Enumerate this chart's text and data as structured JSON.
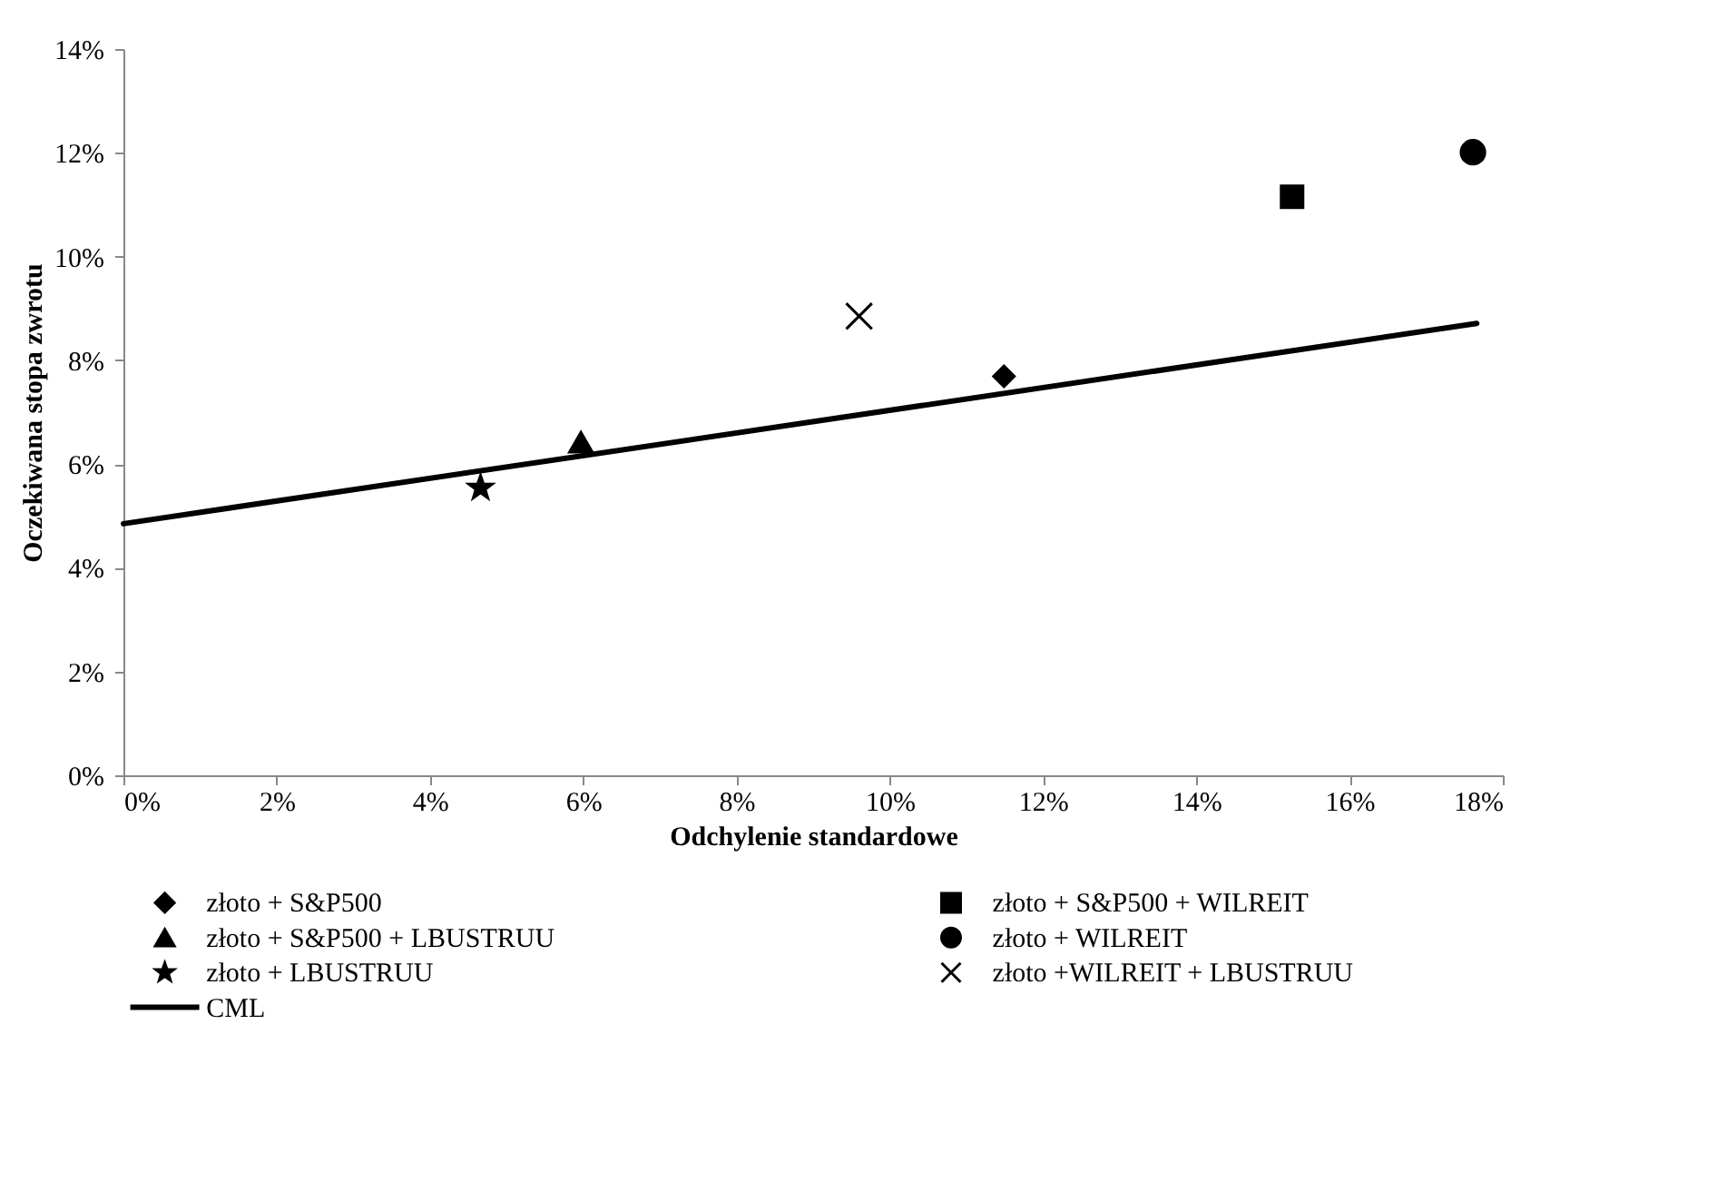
{
  "chart_data": {
    "type": "scatter",
    "xlabel": "Odchylenie standardowe",
    "ylabel": "Oczekiwana stopa zwrotu",
    "xlim": [
      0,
      0.18
    ],
    "ylim": [
      0,
      0.14
    ],
    "xticks": [
      {
        "value": 0,
        "label": "0%"
      },
      {
        "value": 0.02,
        "label": "2%"
      },
      {
        "value": 0.04,
        "label": "4%"
      },
      {
        "value": 0.06,
        "label": "6%"
      },
      {
        "value": 0.08,
        "label": "8%"
      },
      {
        "value": 0.1,
        "label": "10%"
      },
      {
        "value": 0.12,
        "label": "12%"
      },
      {
        "value": 0.14,
        "label": "14%"
      },
      {
        "value": 0.16,
        "label": "16%"
      },
      {
        "value": 0.18,
        "label": "18%"
      }
    ],
    "yticks": [
      {
        "value": 0,
        "label": "0%"
      },
      {
        "value": 0.02,
        "label": "2%"
      },
      {
        "value": 0.04,
        "label": "4%"
      },
      {
        "value": 0.06,
        "label": "6%"
      },
      {
        "value": 0.08,
        "label": "8%"
      },
      {
        "value": 0.1,
        "label": "10%"
      },
      {
        "value": 0.12,
        "label": "12%"
      },
      {
        "value": 0.14,
        "label": "14%"
      }
    ],
    "grid": false,
    "legend": "bottom",
    "series": [
      {
        "name": "złoto + S&P500",
        "color": "#000000",
        "type": "scatter",
        "marker": "diamond",
        "x": [
          0.1149
        ],
        "values": [
          0.0769
        ]
      },
      {
        "name": "złoto + S&P500 + WILREIT",
        "color": "#000000",
        "type": "scatter",
        "marker": "square",
        "x": [
          0.1525
        ],
        "values": [
          0.1115
        ]
      },
      {
        "name": "złoto + S&P500 + LBUSTRUU",
        "color": "#000000",
        "type": "scatter",
        "marker": "triangle",
        "x": [
          0.0597
        ],
        "values": [
          0.0642
        ]
      },
      {
        "name": "złoto + WILREIT",
        "color": "#000000",
        "type": "scatter",
        "marker": "circle",
        "x": [
          0.1761
        ],
        "values": [
          0.1201
        ]
      },
      {
        "name": "złoto + LBUSTRUU",
        "color": "#000000",
        "type": "scatter",
        "marker": "star",
        "x": [
          0.0466
        ],
        "values": [
          0.0554
        ]
      },
      {
        "name": "złoto +WILREIT + LBUSTRUU",
        "color": "#000000",
        "type": "scatter",
        "marker": "cross",
        "x": [
          0.096
        ],
        "values": [
          0.0885
        ]
      },
      {
        "name": "CML",
        "color": "#000000",
        "type": "line",
        "marker": "none",
        "line_style": "solid",
        "x": [
          0,
          0.1766
        ],
        "values": [
          0.0485,
          0.0871
        ]
      }
    ]
  }
}
